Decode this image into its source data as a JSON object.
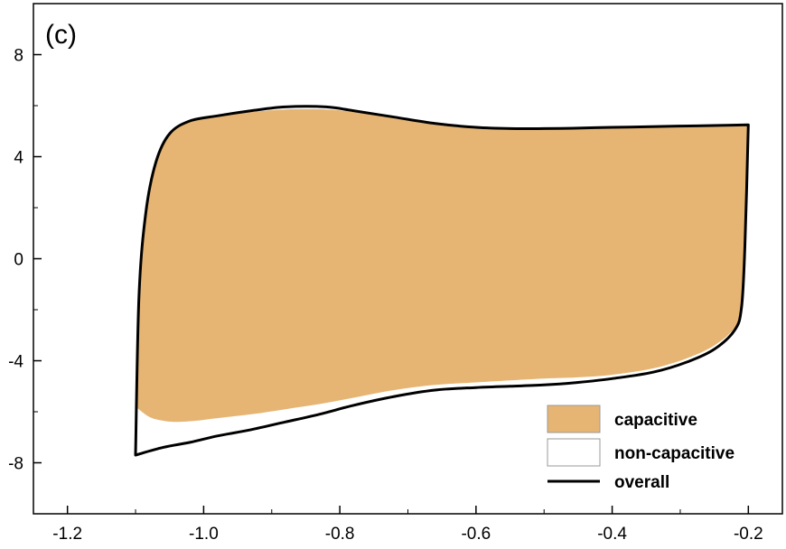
{
  "chart_data": {
    "type": "area",
    "panel_label": "(c)",
    "xlim": [
      -1.25,
      -0.15
    ],
    "ylim": [
      -10,
      10
    ],
    "x_ticks": [
      "-1.2",
      "-1.0",
      "-0.8",
      "-0.6",
      "-0.4",
      "-0.2"
    ],
    "x_tick_values": [
      -1.2,
      -1.0,
      -0.8,
      -0.6,
      -0.4,
      -0.2
    ],
    "y_ticks": [
      "8",
      "4",
      "0",
      "-4",
      "-8"
    ],
    "y_tick_values": [
      8,
      4,
      0,
      -4,
      -8
    ],
    "grid": false,
    "legend_position": "bottom-right",
    "series": [
      {
        "name": "capacitive",
        "style": "filled",
        "color": "#e6b574",
        "upper": {
          "x": [
            -1.1,
            -1.095,
            -1.085,
            -1.07,
            -1.05,
            -1.02,
            -0.98,
            -0.93,
            -0.88,
            -0.82,
            -0.78,
            -0.72,
            -0.66,
            -0.6,
            -0.55,
            -0.5,
            -0.45,
            -0.4,
            -0.35,
            -0.3,
            -0.25,
            -0.2
          ],
          "y": [
            -5.8,
            -1.5,
            1.8,
            3.8,
            4.9,
            5.4,
            5.6,
            5.75,
            5.85,
            5.85,
            5.75,
            5.5,
            5.25,
            5.1,
            5.05,
            5.08,
            5.1,
            5.12,
            5.13,
            5.15,
            5.17,
            5.2
          ]
        },
        "lower": {
          "x": [
            -1.1,
            -1.08,
            -1.06,
            -1.04,
            -1.01,
            -0.98,
            -0.93,
            -0.88,
            -0.83,
            -0.78,
            -0.72,
            -0.66,
            -0.6,
            -0.5,
            -0.45,
            -0.4,
            -0.34,
            -0.29,
            -0.25,
            -0.22,
            -0.21,
            -0.205,
            -0.2
          ],
          "y": [
            -5.8,
            -6.2,
            -6.35,
            -6.4,
            -6.35,
            -6.25,
            -6.1,
            -5.9,
            -5.7,
            -5.45,
            -5.15,
            -4.95,
            -4.85,
            -4.7,
            -4.65,
            -4.55,
            -4.3,
            -3.9,
            -3.4,
            -2.7,
            -1.8,
            0.5,
            5.2
          ]
        }
      },
      {
        "name": "non-capacitive",
        "style": "outline",
        "color": "#ffffff"
      },
      {
        "name": "overall",
        "style": "line",
        "color": "#000000",
        "upper": {
          "x": [
            -1.1,
            -1.095,
            -1.085,
            -1.07,
            -1.05,
            -1.02,
            -0.98,
            -0.93,
            -0.88,
            -0.82,
            -0.78,
            -0.72,
            -0.66,
            -0.6,
            -0.55,
            -0.5,
            -0.45,
            -0.4,
            -0.35,
            -0.3,
            -0.25,
            -0.2
          ],
          "y": [
            -7.7,
            -1.5,
            1.8,
            3.8,
            4.9,
            5.4,
            5.6,
            5.8,
            5.95,
            5.95,
            5.8,
            5.55,
            5.3,
            5.15,
            5.1,
            5.1,
            5.12,
            5.15,
            5.17,
            5.2,
            5.22,
            5.25
          ]
        },
        "lower": {
          "x": [
            -1.1,
            -1.06,
            -1.02,
            -0.98,
            -0.93,
            -0.88,
            -0.83,
            -0.78,
            -0.72,
            -0.66,
            -0.6,
            -0.55,
            -0.5,
            -0.45,
            -0.4,
            -0.34,
            -0.29,
            -0.25,
            -0.22,
            -0.21,
            -0.205,
            -0.2
          ],
          "y": [
            -7.7,
            -7.4,
            -7.2,
            -6.95,
            -6.7,
            -6.4,
            -6.1,
            -5.75,
            -5.4,
            -5.15,
            -5.05,
            -5.0,
            -4.95,
            -4.85,
            -4.7,
            -4.45,
            -4.05,
            -3.55,
            -2.8,
            -1.9,
            0.5,
            5.25
          ]
        }
      }
    ]
  }
}
